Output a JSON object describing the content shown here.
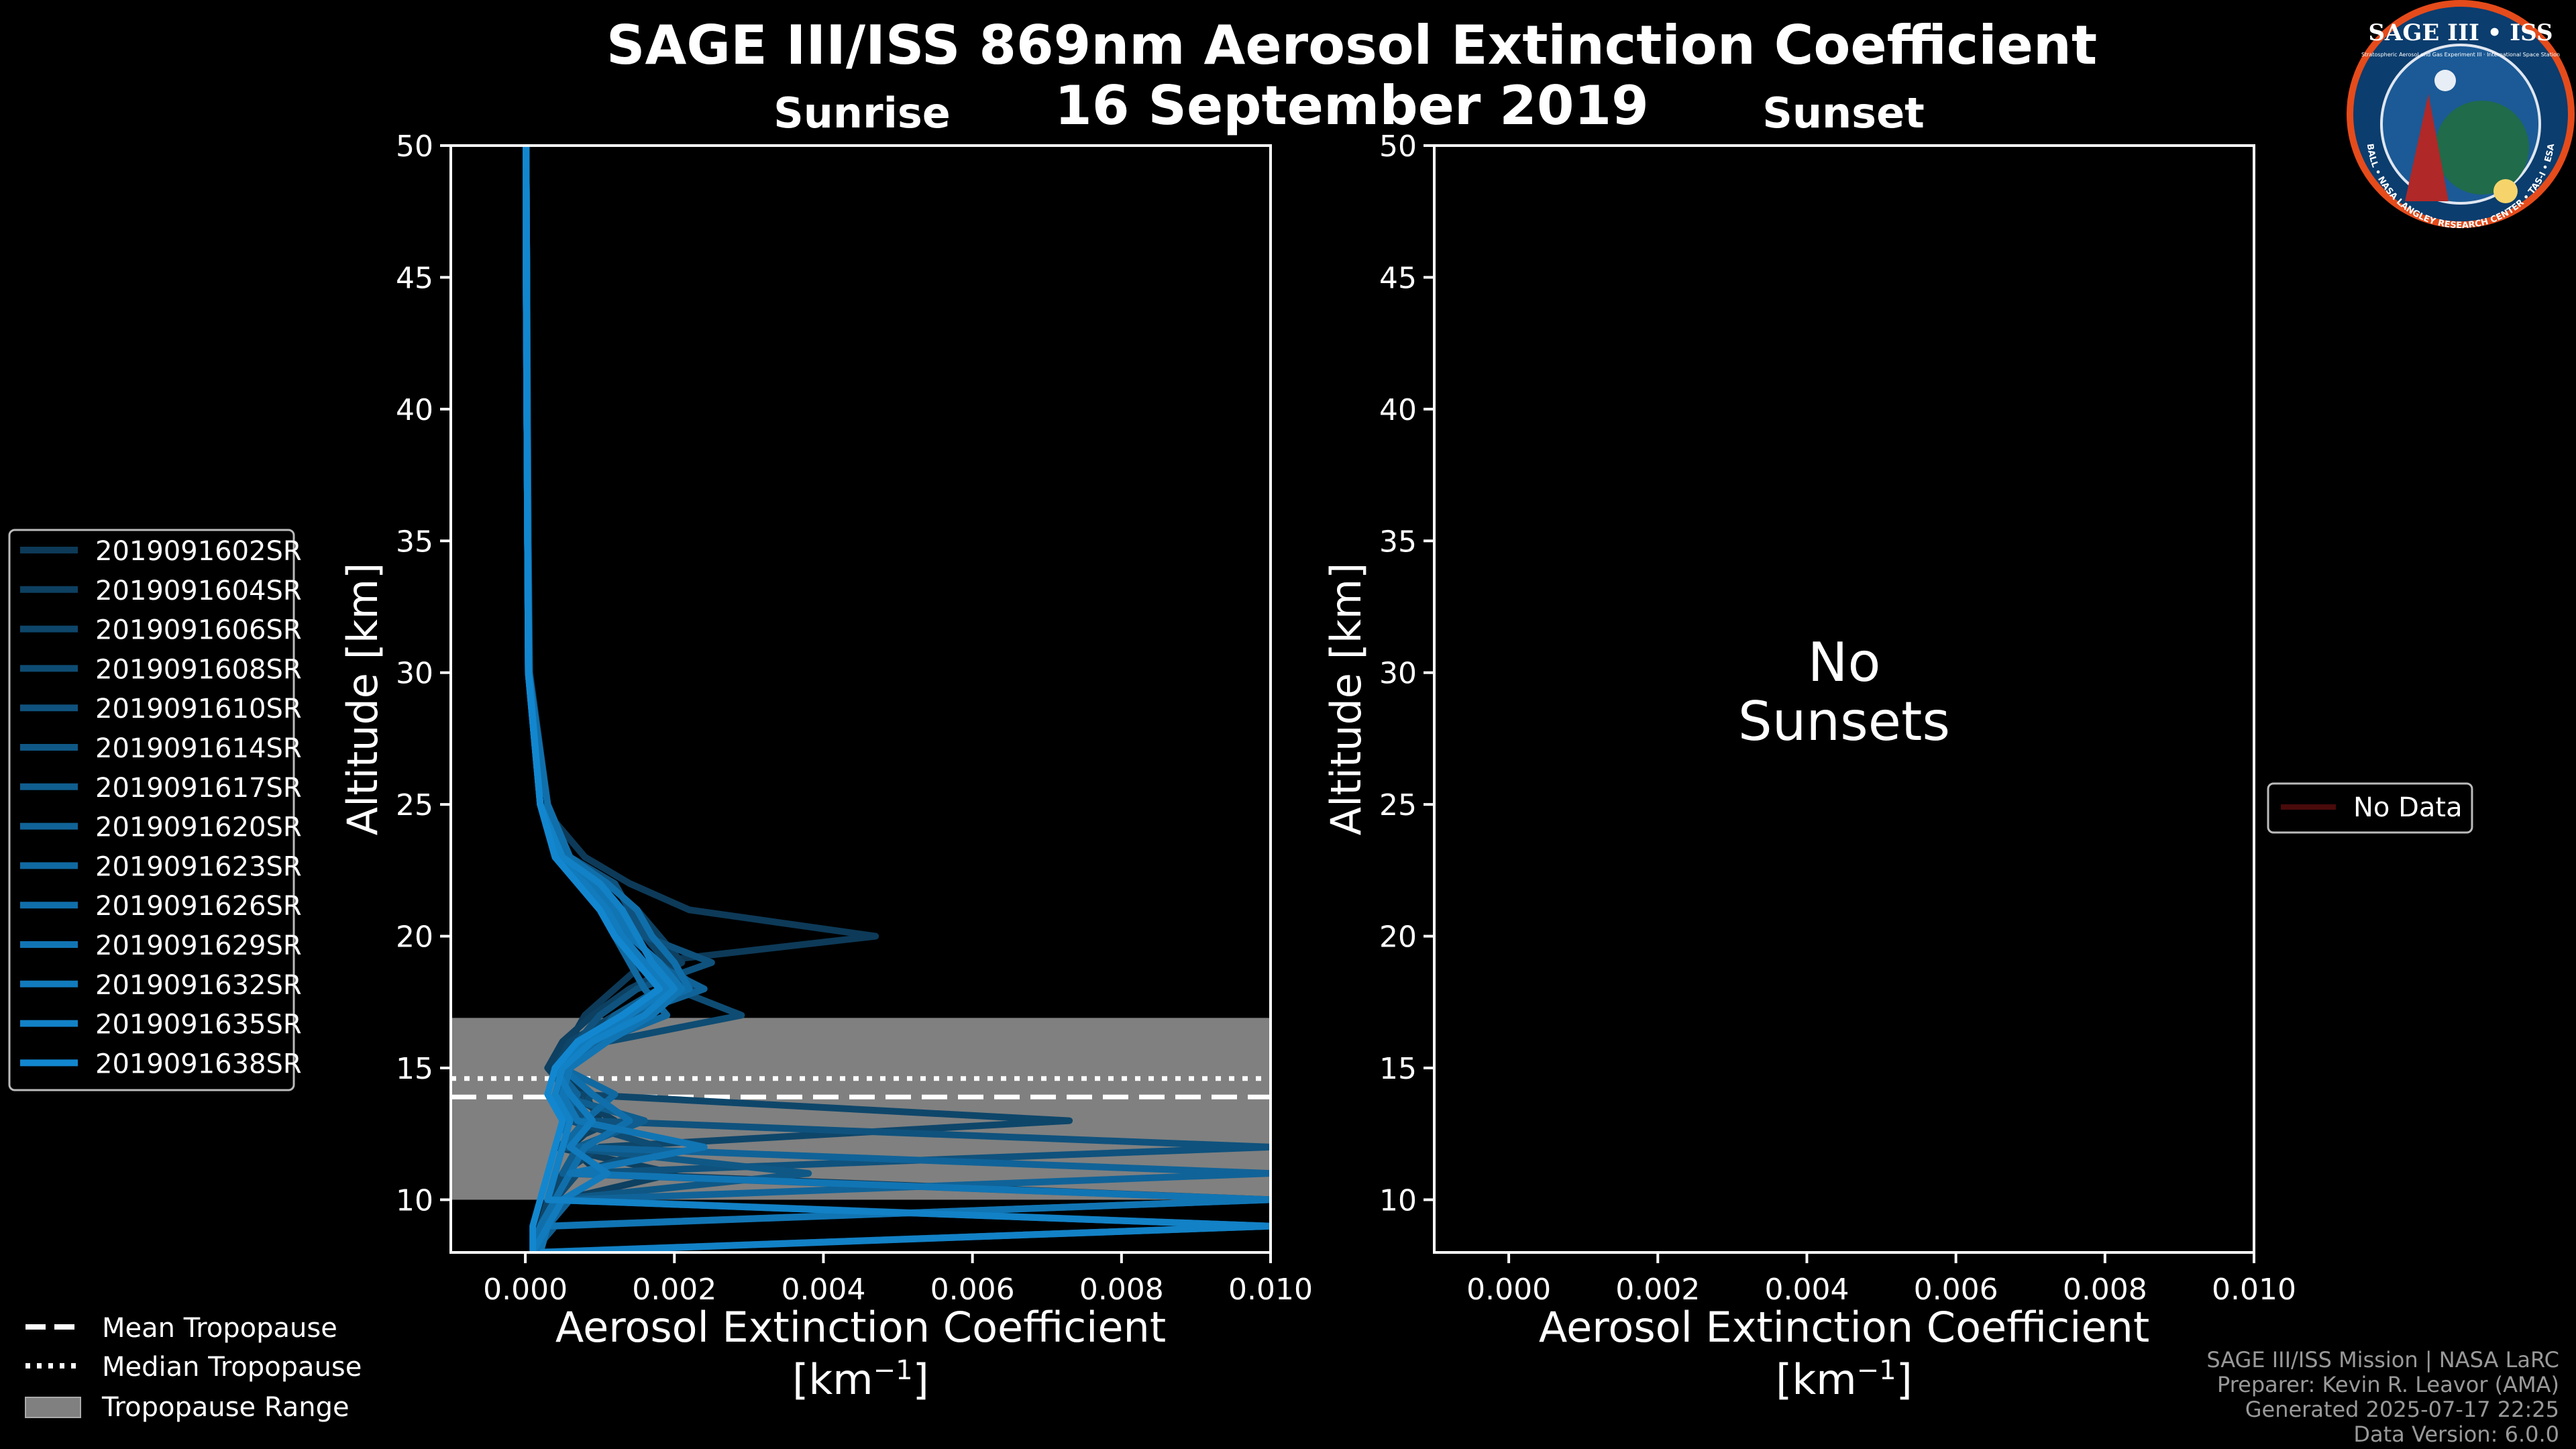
{
  "title": "SAGE III/ISS 869nm Aerosol Extinction Coefficient",
  "date": "16 September 2019",
  "logo": {
    "name": "SAGE III • ISS",
    "subtitle": "Stratospheric Aerosol and Gas Experiment III · International Space Station",
    "ring_text": "BALL • NASA LANGLEY RESEARCH CENTER • TAS-I • ESA"
  },
  "colors": {
    "background": "#000000",
    "text": "#ffffff",
    "series_start": "#0d3a58",
    "series_end": "#1287cf",
    "tropopause_range": "#808080",
    "no_data": "#4a0a0a"
  },
  "legend_series": {
    "entries": [
      "2019091602SR",
      "2019091604SR",
      "2019091606SR",
      "2019091608SR",
      "2019091610SR",
      "2019091614SR",
      "2019091617SR",
      "2019091620SR",
      "2019091623SR",
      "2019091626SR",
      "2019091629SR",
      "2019091632SR",
      "2019091635SR",
      "2019091638SR"
    ]
  },
  "legend_tropopause": {
    "mean": "Mean Tropopause",
    "median": "Median Tropopause",
    "range": "Tropopause Range"
  },
  "legend_nodata": {
    "label": "No Data"
  },
  "no_sunsets": {
    "line1": "No",
    "line2": "Sunsets"
  },
  "footer": {
    "line1": "SAGE III/ISS Mission | NASA LaRC",
    "line2": "Preparer: Kevin R. Leavor (AMA)",
    "line3": "Generated 2025-07-17 22:25",
    "line4": "Data Version: 6.0.0"
  },
  "chart_data": [
    {
      "type": "line",
      "panel": "sunrise",
      "title": "Sunrise",
      "xlabel": "Aerosol Extinction Coefficient",
      "xunit_base": "[km",
      "xunit_exp": "−1",
      "xunit_close": "]",
      "ylabel": "Altitude [km]",
      "xlim": [
        -0.001,
        0.01
      ],
      "ylim": [
        8,
        50
      ],
      "xticks": [
        0.0,
        0.002,
        0.004,
        0.006,
        0.008,
        0.01
      ],
      "xtick_labels": [
        "0.000",
        "0.002",
        "0.004",
        "0.006",
        "0.008",
        "0.010"
      ],
      "yticks": [
        10,
        15,
        20,
        25,
        30,
        35,
        40,
        45,
        50
      ],
      "tropopause": {
        "mean": 13.9,
        "median": 14.6,
        "range": [
          10.0,
          16.9
        ]
      },
      "series": [
        {
          "name": "2019091602SR",
          "altitude": [
            50,
            45,
            40,
            35,
            30,
            25,
            23,
            22,
            21,
            20,
            19,
            18,
            17,
            16,
            15,
            14,
            13,
            12,
            11,
            10,
            9,
            8
          ],
          "values": [
            1e-05,
            2e-05,
            2e-05,
            3e-05,
            5e-05,
            0.0002,
            0.0008,
            0.0014,
            0.0022,
            0.0047,
            0.0016,
            0.0012,
            0.0008,
            0.0006,
            0.0004,
            0.0008,
            0.001,
            0.0006,
            0.001,
            0.01,
            0.0003,
            0.0002
          ]
        },
        {
          "name": "2019091604SR",
          "altitude": [
            50,
            45,
            40,
            35,
            30,
            25,
            23,
            22,
            21,
            20,
            19,
            18,
            17,
            16,
            15,
            14,
            13,
            12,
            11,
            10,
            9,
            8
          ],
          "values": [
            1e-05,
            2e-05,
            3e-05,
            4e-05,
            6e-05,
            0.0003,
            0.0006,
            0.0011,
            0.0015,
            0.0018,
            0.0021,
            0.0014,
            0.0009,
            0.0005,
            0.0003,
            0.0006,
            0.0012,
            0.0004,
            0.002,
            0.0005,
            0.01,
            0.0001
          ]
        },
        {
          "name": "2019091606SR",
          "altitude": [
            50,
            45,
            40,
            35,
            30,
            25,
            23,
            22,
            21,
            20,
            19,
            18,
            17,
            16,
            15,
            14,
            13,
            12,
            11,
            10,
            9,
            8
          ],
          "values": [
            1e-05,
            1e-05,
            2e-05,
            3e-05,
            5e-05,
            0.0002,
            0.0005,
            0.0009,
            0.0013,
            0.0016,
            0.0019,
            0.0023,
            0.0012,
            0.0006,
            0.0004,
            0.0007,
            0.0073,
            0.001,
            0.0005,
            0.0003,
            0.0002,
            0.0001
          ]
        },
        {
          "name": "2019091608SR",
          "altitude": [
            50,
            45,
            40,
            35,
            30,
            25,
            23,
            22,
            21,
            20,
            19,
            18,
            17,
            16,
            15,
            14,
            13,
            12,
            11,
            10,
            9,
            8
          ],
          "values": [
            1e-05,
            2e-05,
            2e-05,
            3e-05,
            4e-05,
            0.0002,
            0.0004,
            0.001,
            0.0012,
            0.0015,
            0.0017,
            0.002,
            0.0029,
            0.0011,
            0.0005,
            0.0009,
            0.0006,
            0.0018,
            0.0007,
            0.0004,
            0.0003,
            0.0001
          ]
        },
        {
          "name": "2019091610SR",
          "altitude": [
            50,
            45,
            40,
            35,
            30,
            25,
            23,
            22,
            21,
            20,
            19,
            18,
            17,
            16,
            15,
            14,
            13,
            12,
            11,
            10,
            9,
            8
          ],
          "values": [
            1e-05,
            1e-05,
            2e-05,
            3e-05,
            4e-05,
            0.0002,
            0.0006,
            0.0012,
            0.0014,
            0.0016,
            0.0025,
            0.0015,
            0.001,
            0.0007,
            0.0004,
            0.0005,
            0.0008,
            0.01,
            0.0006,
            0.0004,
            0.0002,
            0.0001
          ]
        },
        {
          "name": "2019091614SR",
          "altitude": [
            50,
            45,
            40,
            35,
            30,
            25,
            23,
            22,
            21,
            20,
            19,
            18,
            17,
            16,
            15,
            14,
            13,
            12,
            11,
            10,
            9,
            8
          ],
          "values": [
            1e-05,
            2e-05,
            2e-05,
            3e-05,
            5e-05,
            0.0002,
            0.0005,
            0.0008,
            0.0011,
            0.0014,
            0.0018,
            0.0022,
            0.0016,
            0.0008,
            0.0005,
            0.0006,
            0.0009,
            0.0005,
            0.0038,
            0.0004,
            0.0003,
            0.0002
          ]
        },
        {
          "name": "2019091617SR",
          "altitude": [
            50,
            45,
            40,
            35,
            30,
            25,
            23,
            22,
            21,
            20,
            19,
            18,
            17,
            16,
            15,
            14,
            13,
            12,
            11,
            10,
            9,
            8
          ],
          "values": [
            1e-05,
            1e-05,
            2e-05,
            3e-05,
            4e-05,
            0.0003,
            0.0004,
            0.0009,
            0.0012,
            0.0013,
            0.0016,
            0.0018,
            0.0012,
            0.0009,
            0.0006,
            0.0004,
            0.0016,
            0.0007,
            0.0005,
            0.01,
            0.0004,
            0.0001
          ]
        },
        {
          "name": "2019091620SR",
          "altitude": [
            50,
            45,
            40,
            35,
            30,
            25,
            23,
            22,
            21,
            20,
            19,
            18,
            17,
            16,
            15,
            14,
            13,
            12,
            11,
            10,
            9,
            8
          ],
          "values": [
            1e-05,
            2e-05,
            3e-05,
            4e-05,
            5e-05,
            0.0002,
            0.0005,
            0.001,
            0.0013,
            0.0015,
            0.0017,
            0.0024,
            0.0014,
            0.0008,
            0.0004,
            0.0007,
            0.0005,
            0.0006,
            0.01,
            0.0006,
            0.0003,
            0.0002
          ]
        },
        {
          "name": "2019091623SR",
          "altitude": [
            50,
            45,
            40,
            35,
            30,
            25,
            23,
            22,
            21,
            20,
            19,
            18,
            17,
            16,
            15,
            14,
            13,
            12,
            11,
            10,
            9,
            8
          ],
          "values": [
            1e-05,
            1e-05,
            2e-05,
            3e-05,
            4e-05,
            0.0002,
            0.0004,
            0.0007,
            0.001,
            0.0012,
            0.0014,
            0.0016,
            0.0019,
            0.001,
            0.0005,
            0.0012,
            0.0008,
            0.0005,
            0.0004,
            0.0003,
            0.01,
            0.0001
          ]
        },
        {
          "name": "2019091626SR",
          "altitude": [
            50,
            45,
            40,
            35,
            30,
            25,
            23,
            22,
            21,
            20,
            19,
            18,
            17,
            16,
            15,
            14,
            13,
            12,
            11,
            10,
            9,
            8
          ],
          "values": [
            1e-05,
            2e-05,
            2e-05,
            3e-05,
            5e-05,
            0.0003,
            0.0006,
            0.0011,
            0.0015,
            0.0017,
            0.002,
            0.0022,
            0.0013,
            0.0007,
            0.0005,
            0.0009,
            0.0014,
            0.0008,
            0.0006,
            0.0004,
            0.0002,
            0.0001
          ]
        },
        {
          "name": "2019091629SR",
          "altitude": [
            50,
            45,
            40,
            35,
            30,
            25,
            23,
            22,
            21,
            20,
            19,
            18,
            17,
            16,
            15,
            14,
            13,
            12,
            11,
            10,
            9,
            8
          ],
          "values": [
            1e-05,
            1e-05,
            2e-05,
            3e-05,
            4e-05,
            0.0002,
            0.0005,
            0.0009,
            0.0012,
            0.0014,
            0.0018,
            0.0021,
            0.0017,
            0.0011,
            0.0006,
            0.0005,
            0.0007,
            0.0024,
            0.0006,
            0.01,
            0.0003,
            0.0002
          ]
        },
        {
          "name": "2019091632SR",
          "altitude": [
            50,
            45,
            40,
            35,
            30,
            25,
            23,
            22,
            21,
            20,
            19,
            18,
            17,
            16,
            15,
            14,
            13,
            12,
            11,
            10,
            9,
            8
          ],
          "values": [
            1e-05,
            2e-05,
            2e-05,
            3e-05,
            4e-05,
            0.0002,
            0.0004,
            0.0008,
            0.0011,
            0.0013,
            0.0016,
            0.0019,
            0.0014,
            0.0008,
            0.0004,
            0.0006,
            0.0009,
            0.0006,
            0.0011,
            0.0005,
            0.0003,
            0.0001
          ]
        },
        {
          "name": "2019091635SR",
          "altitude": [
            50,
            45,
            40,
            35,
            30,
            25,
            23,
            22,
            21,
            20,
            19,
            18,
            17,
            16,
            15,
            14,
            13,
            12,
            11,
            10,
            9,
            8
          ],
          "values": [
            1e-05,
            1e-05,
            2e-05,
            3e-05,
            5e-05,
            0.0002,
            0.0005,
            0.001,
            0.0013,
            0.0015,
            0.0017,
            0.002,
            0.0016,
            0.0009,
            0.0005,
            0.0004,
            0.0006,
            0.0005,
            0.0004,
            0.0003,
            0.01,
            0.0002
          ]
        },
        {
          "name": "2019091638SR",
          "altitude": [
            50,
            45,
            40,
            35,
            30,
            25,
            23,
            22,
            21,
            20,
            19,
            18,
            17,
            16,
            15,
            14,
            13,
            12,
            11,
            10,
            9,
            8
          ],
          "values": [
            1e-05,
            2e-05,
            2e-05,
            3e-05,
            4e-05,
            0.0002,
            0.0004,
            0.0007,
            0.001,
            0.0012,
            0.0015,
            0.0018,
            0.0013,
            0.0007,
            0.0004,
            0.0003,
            0.0005,
            0.0004,
            0.0003,
            0.0002,
            0.0001,
            0.0001
          ]
        }
      ]
    },
    {
      "type": "line",
      "panel": "sunset",
      "title": "Sunset",
      "xlabel": "Aerosol Extinction Coefficient",
      "xunit_base": "[km",
      "xunit_exp": "−1",
      "xunit_close": "]",
      "ylabel": "Altitude [km]",
      "xlim": [
        -0.001,
        0.01
      ],
      "ylim": [
        8,
        50
      ],
      "xticks": [
        0.0,
        0.002,
        0.004,
        0.006,
        0.008,
        0.01
      ],
      "xtick_labels": [
        "0.000",
        "0.002",
        "0.004",
        "0.006",
        "0.008",
        "0.010"
      ],
      "yticks": [
        10,
        15,
        20,
        25,
        30,
        35,
        40,
        45,
        50
      ],
      "series": []
    }
  ]
}
